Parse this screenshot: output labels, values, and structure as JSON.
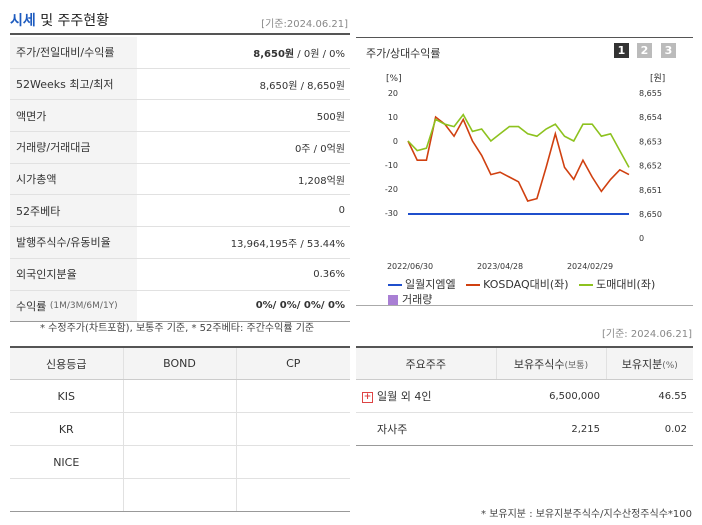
{
  "header": {
    "title_1": "시세",
    "title_2": " 및 주주현황",
    "date": "[기준:2024.06.21]"
  },
  "info_rows": [
    {
      "label": "주가/전일대비/수익률",
      "value_bold": "8,650원",
      "value": " / 0원 / 0%"
    },
    {
      "label": "52Weeks 최고/최저",
      "value": "8,650원 / 8,650원"
    },
    {
      "label": "액면가",
      "value": "500원"
    },
    {
      "label": "거래량/거래대금",
      "value": "0주 / 0억원"
    },
    {
      "label": "시가총액",
      "value": "1,208억원"
    },
    {
      "label": "52주베타",
      "value": "0"
    },
    {
      "label": "발행주식수/유동비율",
      "value": "13,964,195주 / 53.44%"
    },
    {
      "label": "외국인지분율",
      "value": "0.36%"
    },
    {
      "label": "수익률",
      "label_sub": "(1M/3M/6M/1Y)",
      "value_bold": "0%/ 0%/ 0%/ 0%"
    }
  ],
  "note_left": "* 수정주가(차트포함), 보통주 기준, * 52주베타: 주간수익률 기준",
  "chart": {
    "title": "주가/상대수익률",
    "pages": [
      "1",
      "2",
      "3"
    ],
    "legend": {
      "s1": "일월지엠엘",
      "s2": "KOSDAQ대비(좌)",
      "s3": "도매대비(좌)",
      "s4": "거래량"
    },
    "colors": {
      "s1": "#1f4fcc",
      "s2": "#d04010",
      "s3": "#8dc21f",
      "s4": "#a97fd4"
    }
  },
  "chart_data": {
    "type": "line",
    "left_unit": "[%]",
    "right_unit": "[원]",
    "x_ticks": [
      "2022/06/30",
      "2023/04/28",
      "2024/02/29"
    ],
    "left_ticks": [
      20,
      10,
      0,
      -10,
      -20,
      -30
    ],
    "right_ticks": [
      "8,655",
      "8,654",
      "8,653",
      "8,652",
      "8,651",
      "8,650",
      "0"
    ],
    "ylim_left": [
      -30,
      20
    ],
    "series": [
      {
        "name": "일월지엠엘",
        "axis": "right",
        "values": [
          8650,
          8650,
          8650,
          8650,
          8650,
          8650,
          8650,
          8650,
          8650,
          8650,
          8650,
          8650,
          8650,
          8650,
          8650,
          8650,
          8650,
          8650,
          8650,
          8650,
          8650,
          8650,
          8650,
          8650,
          8650
        ]
      },
      {
        "name": "KOSDAQ대비(좌)",
        "axis": "left",
        "values": [
          0,
          -8,
          -8,
          10,
          7,
          2,
          9,
          0,
          -6,
          -14,
          -13,
          -15,
          -17,
          -25,
          -24,
          -11,
          3,
          -11,
          -16,
          -8,
          -15,
          -21,
          -16,
          -12,
          -14
        ]
      },
      {
        "name": "도매대비(좌)",
        "axis": "left",
        "values": [
          0,
          -4,
          -3,
          9,
          7,
          6,
          11,
          4,
          5,
          0,
          3,
          6,
          6,
          3,
          2,
          5,
          7,
          2,
          0,
          7,
          7,
          2,
          3,
          -4,
          -11
        ]
      }
    ]
  },
  "date_right": "[기준: 2024.06.21]",
  "credit": {
    "headers": [
      "신용등급",
      "BOND",
      "CP"
    ],
    "rows": [
      [
        "KIS",
        "",
        ""
      ],
      [
        "KR",
        "",
        ""
      ],
      [
        "NICE",
        "",
        ""
      ],
      [
        "",
        "",
        ""
      ]
    ]
  },
  "holders": {
    "headers": [
      "주요주주",
      "보유주식수",
      "(보통)",
      "보유지분",
      "(%)"
    ],
    "rows": [
      {
        "name": "일월 외 4인",
        "shares": "6,500,000",
        "pct": "46.55",
        "expand": "+"
      },
      {
        "name": "자사주",
        "shares": "2,215",
        "pct": "0.02"
      }
    ]
  },
  "note_right": "* 보유지분 : 보유지분주식수/지수산정주식수*100"
}
